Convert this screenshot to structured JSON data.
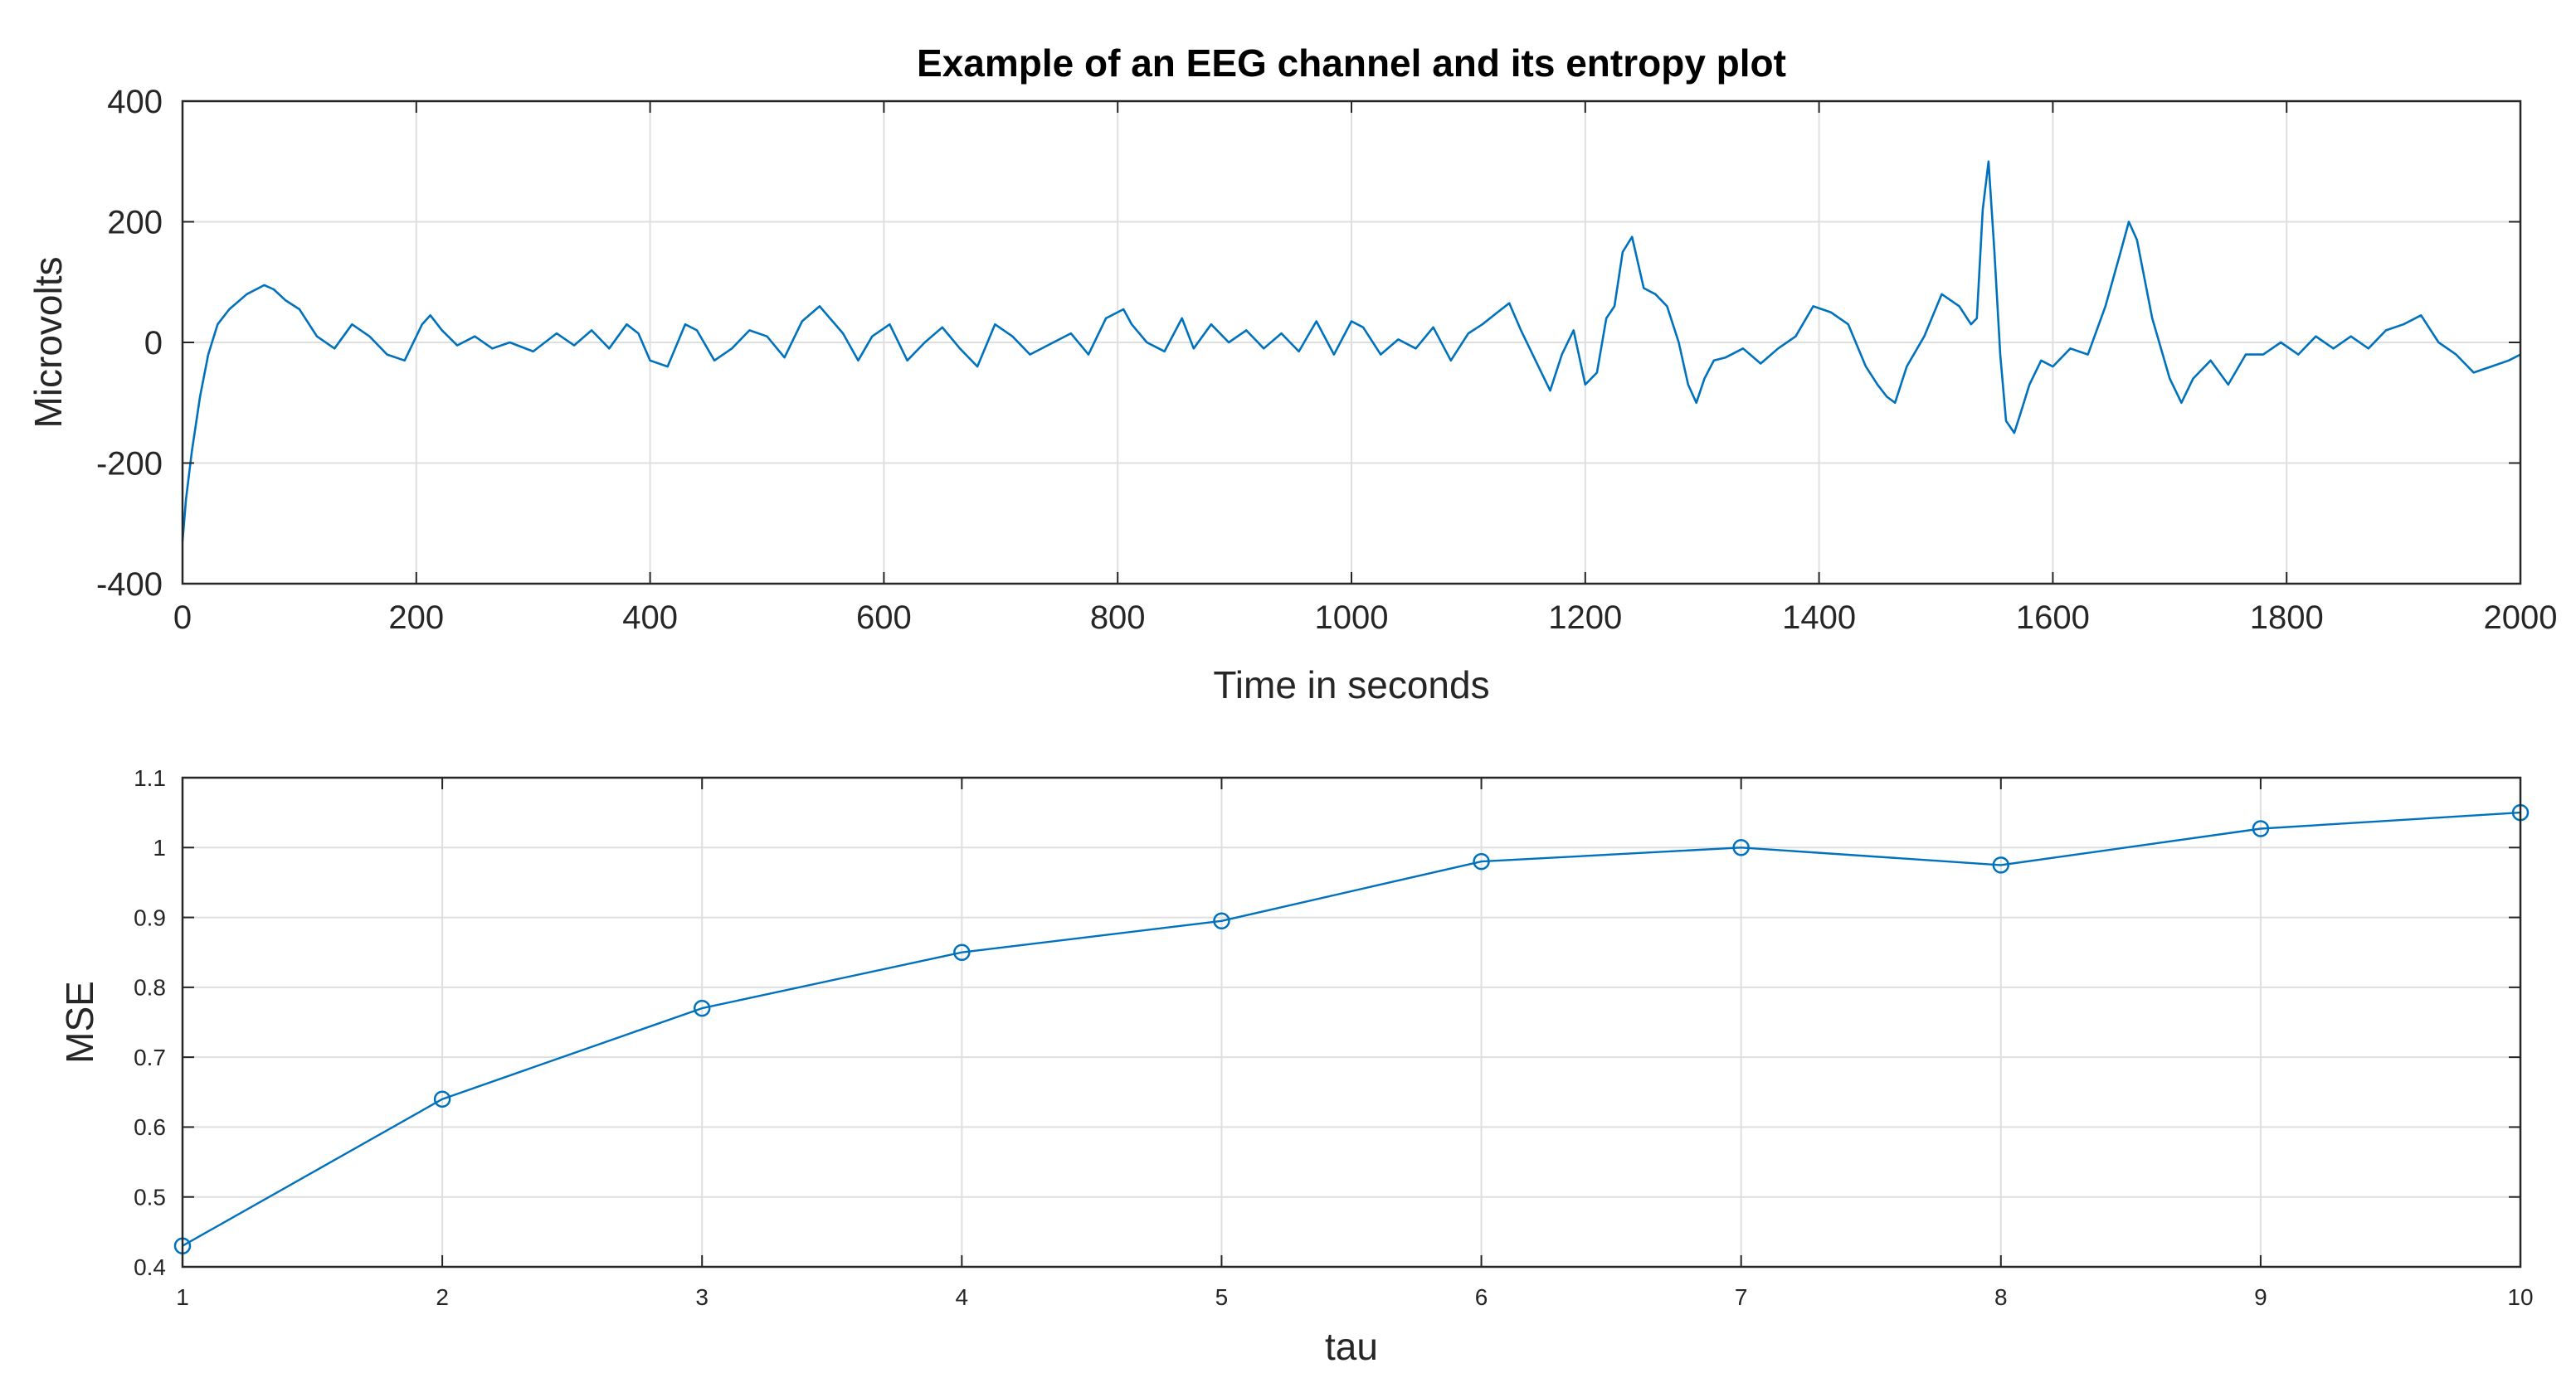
{
  "chart_data": [
    {
      "type": "line",
      "title": "Example of an EEG channel and its entropy plot",
      "xlabel": "Time in seconds",
      "ylabel": "Microvolts",
      "xlim": [
        0,
        2000
      ],
      "ylim": [
        -400,
        400
      ],
      "xticks": [
        0,
        200,
        400,
        600,
        800,
        1000,
        1200,
        1400,
        1600,
        1800,
        2000
      ],
      "yticks": [
        -400,
        -200,
        0,
        200,
        400
      ],
      "grid": true,
      "color": "#0072BD",
      "series": [
        {
          "x": [
            0,
            3,
            8,
            15,
            22,
            30,
            40,
            55,
            70,
            78,
            88,
            100,
            115,
            130,
            145,
            160,
            175,
            190,
            205,
            212,
            222,
            235,
            250,
            265,
            280,
            300,
            320,
            335,
            350,
            365,
            380,
            390,
            400,
            415,
            430,
            440,
            455,
            470,
            485,
            500,
            515,
            530,
            545,
            565,
            578,
            590,
            605,
            620,
            635,
            650,
            665,
            680,
            695,
            710,
            725,
            745,
            760,
            775,
            790,
            805,
            812,
            825,
            840,
            855,
            865,
            880,
            895,
            910,
            925,
            940,
            955,
            970,
            985,
            1000,
            1010,
            1025,
            1040,
            1055,
            1070,
            1085,
            1100,
            1112,
            1125,
            1135,
            1145,
            1160,
            1170,
            1180,
            1190,
            1200,
            1210,
            1218,
            1225,
            1232,
            1240,
            1250,
            1260,
            1270,
            1280,
            1288,
            1295,
            1302,
            1310,
            1320,
            1335,
            1350,
            1365,
            1380,
            1395,
            1410,
            1425,
            1440,
            1450,
            1458,
            1465,
            1475,
            1490,
            1505,
            1520,
            1530,
            1535,
            1540,
            1545,
            1550,
            1555,
            1560,
            1567,
            1572,
            1580,
            1590,
            1600,
            1615,
            1630,
            1645,
            1658,
            1665,
            1672,
            1685,
            1700,
            1710,
            1720,
            1735,
            1750,
            1765,
            1780,
            1795,
            1810,
            1825,
            1840,
            1855,
            1870,
            1885,
            1900,
            1915,
            1930,
            1945,
            1960,
            1975,
            1990,
            2000
          ],
          "y": [
            -330,
            -260,
            -180,
            -90,
            -20,
            30,
            55,
            80,
            95,
            88,
            70,
            55,
            10,
            -10,
            30,
            10,
            -20,
            -30,
            30,
            45,
            20,
            -5,
            10,
            -10,
            0,
            -15,
            15,
            -5,
            20,
            -10,
            30,
            15,
            -30,
            -40,
            30,
            20,
            -30,
            -10,
            20,
            10,
            -25,
            35,
            60,
            15,
            -30,
            10,
            30,
            -30,
            0,
            25,
            -10,
            -40,
            30,
            10,
            -20,
            0,
            15,
            -20,
            40,
            55,
            30,
            0,
            -15,
            40,
            -10,
            30,
            0,
            20,
            -10,
            15,
            -15,
            35,
            -20,
            35,
            25,
            -20,
            5,
            -10,
            25,
            -30,
            15,
            30,
            50,
            65,
            20,
            -40,
            -80,
            -20,
            20,
            -70,
            -50,
            40,
            60,
            150,
            175,
            90,
            80,
            60,
            0,
            -70,
            -100,
            -60,
            -30,
            -25,
            -10,
            -35,
            -10,
            10,
            60,
            50,
            30,
            -40,
            -70,
            -90,
            -100,
            -40,
            10,
            80,
            60,
            30,
            40,
            220,
            300,
            150,
            -20,
            -130,
            -150,
            -120,
            -70,
            -30,
            -40,
            -10,
            -20,
            60,
            150,
            200,
            170,
            40,
            -60,
            -100,
            -60,
            -30,
            -70,
            -20,
            -20,
            0,
            -20,
            10,
            -10,
            10,
            -10,
            20,
            30,
            45,
            0,
            -20,
            -50,
            -40,
            -30,
            -20
          ]
        }
      ]
    },
    {
      "type": "line",
      "title": "",
      "xlabel": "tau",
      "ylabel": "MSE",
      "xlim": [
        1,
        10
      ],
      "ylim": [
        0.4,
        1.1
      ],
      "xticks": [
        1,
        2,
        3,
        4,
        5,
        6,
        7,
        8,
        9,
        10
      ],
      "yticks": [
        0.4,
        0.5,
        0.6,
        0.7,
        0.8,
        0.9,
        1,
        1.1
      ],
      "grid": true,
      "marker": "circle",
      "color": "#0072BD",
      "series": [
        {
          "x": [
            1,
            2,
            3,
            4,
            5,
            6,
            7,
            8,
            9,
            10
          ],
          "y": [
            0.43,
            0.64,
            0.77,
            0.85,
            0.895,
            0.98,
            1.0,
            0.975,
            1.027,
            1.05
          ]
        }
      ]
    }
  ]
}
